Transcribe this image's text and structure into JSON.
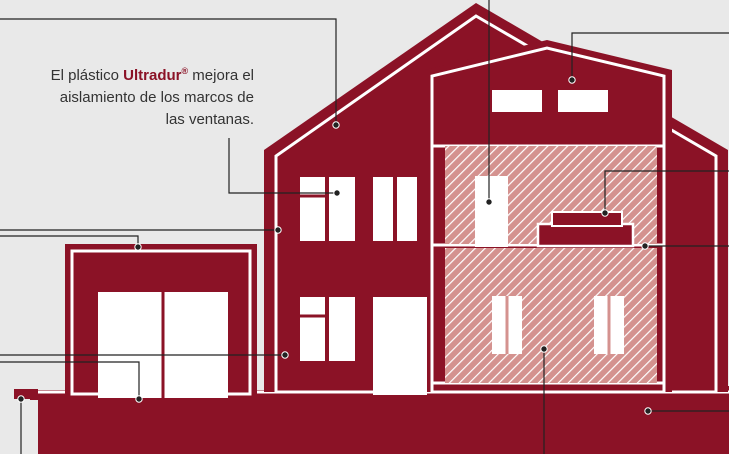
{
  "caption": {
    "before": "El plástico ",
    "brand": "Ultradur",
    "registered": "®",
    "after": " mejora el aislamiento de los marcos de las ventanas."
  },
  "colors": {
    "background": "#e9e9e9",
    "house": "#8b1226",
    "outline": "#ffffff",
    "hatch": "#d4928f",
    "leader": "#222222",
    "brand_text": "#8b1226"
  }
}
